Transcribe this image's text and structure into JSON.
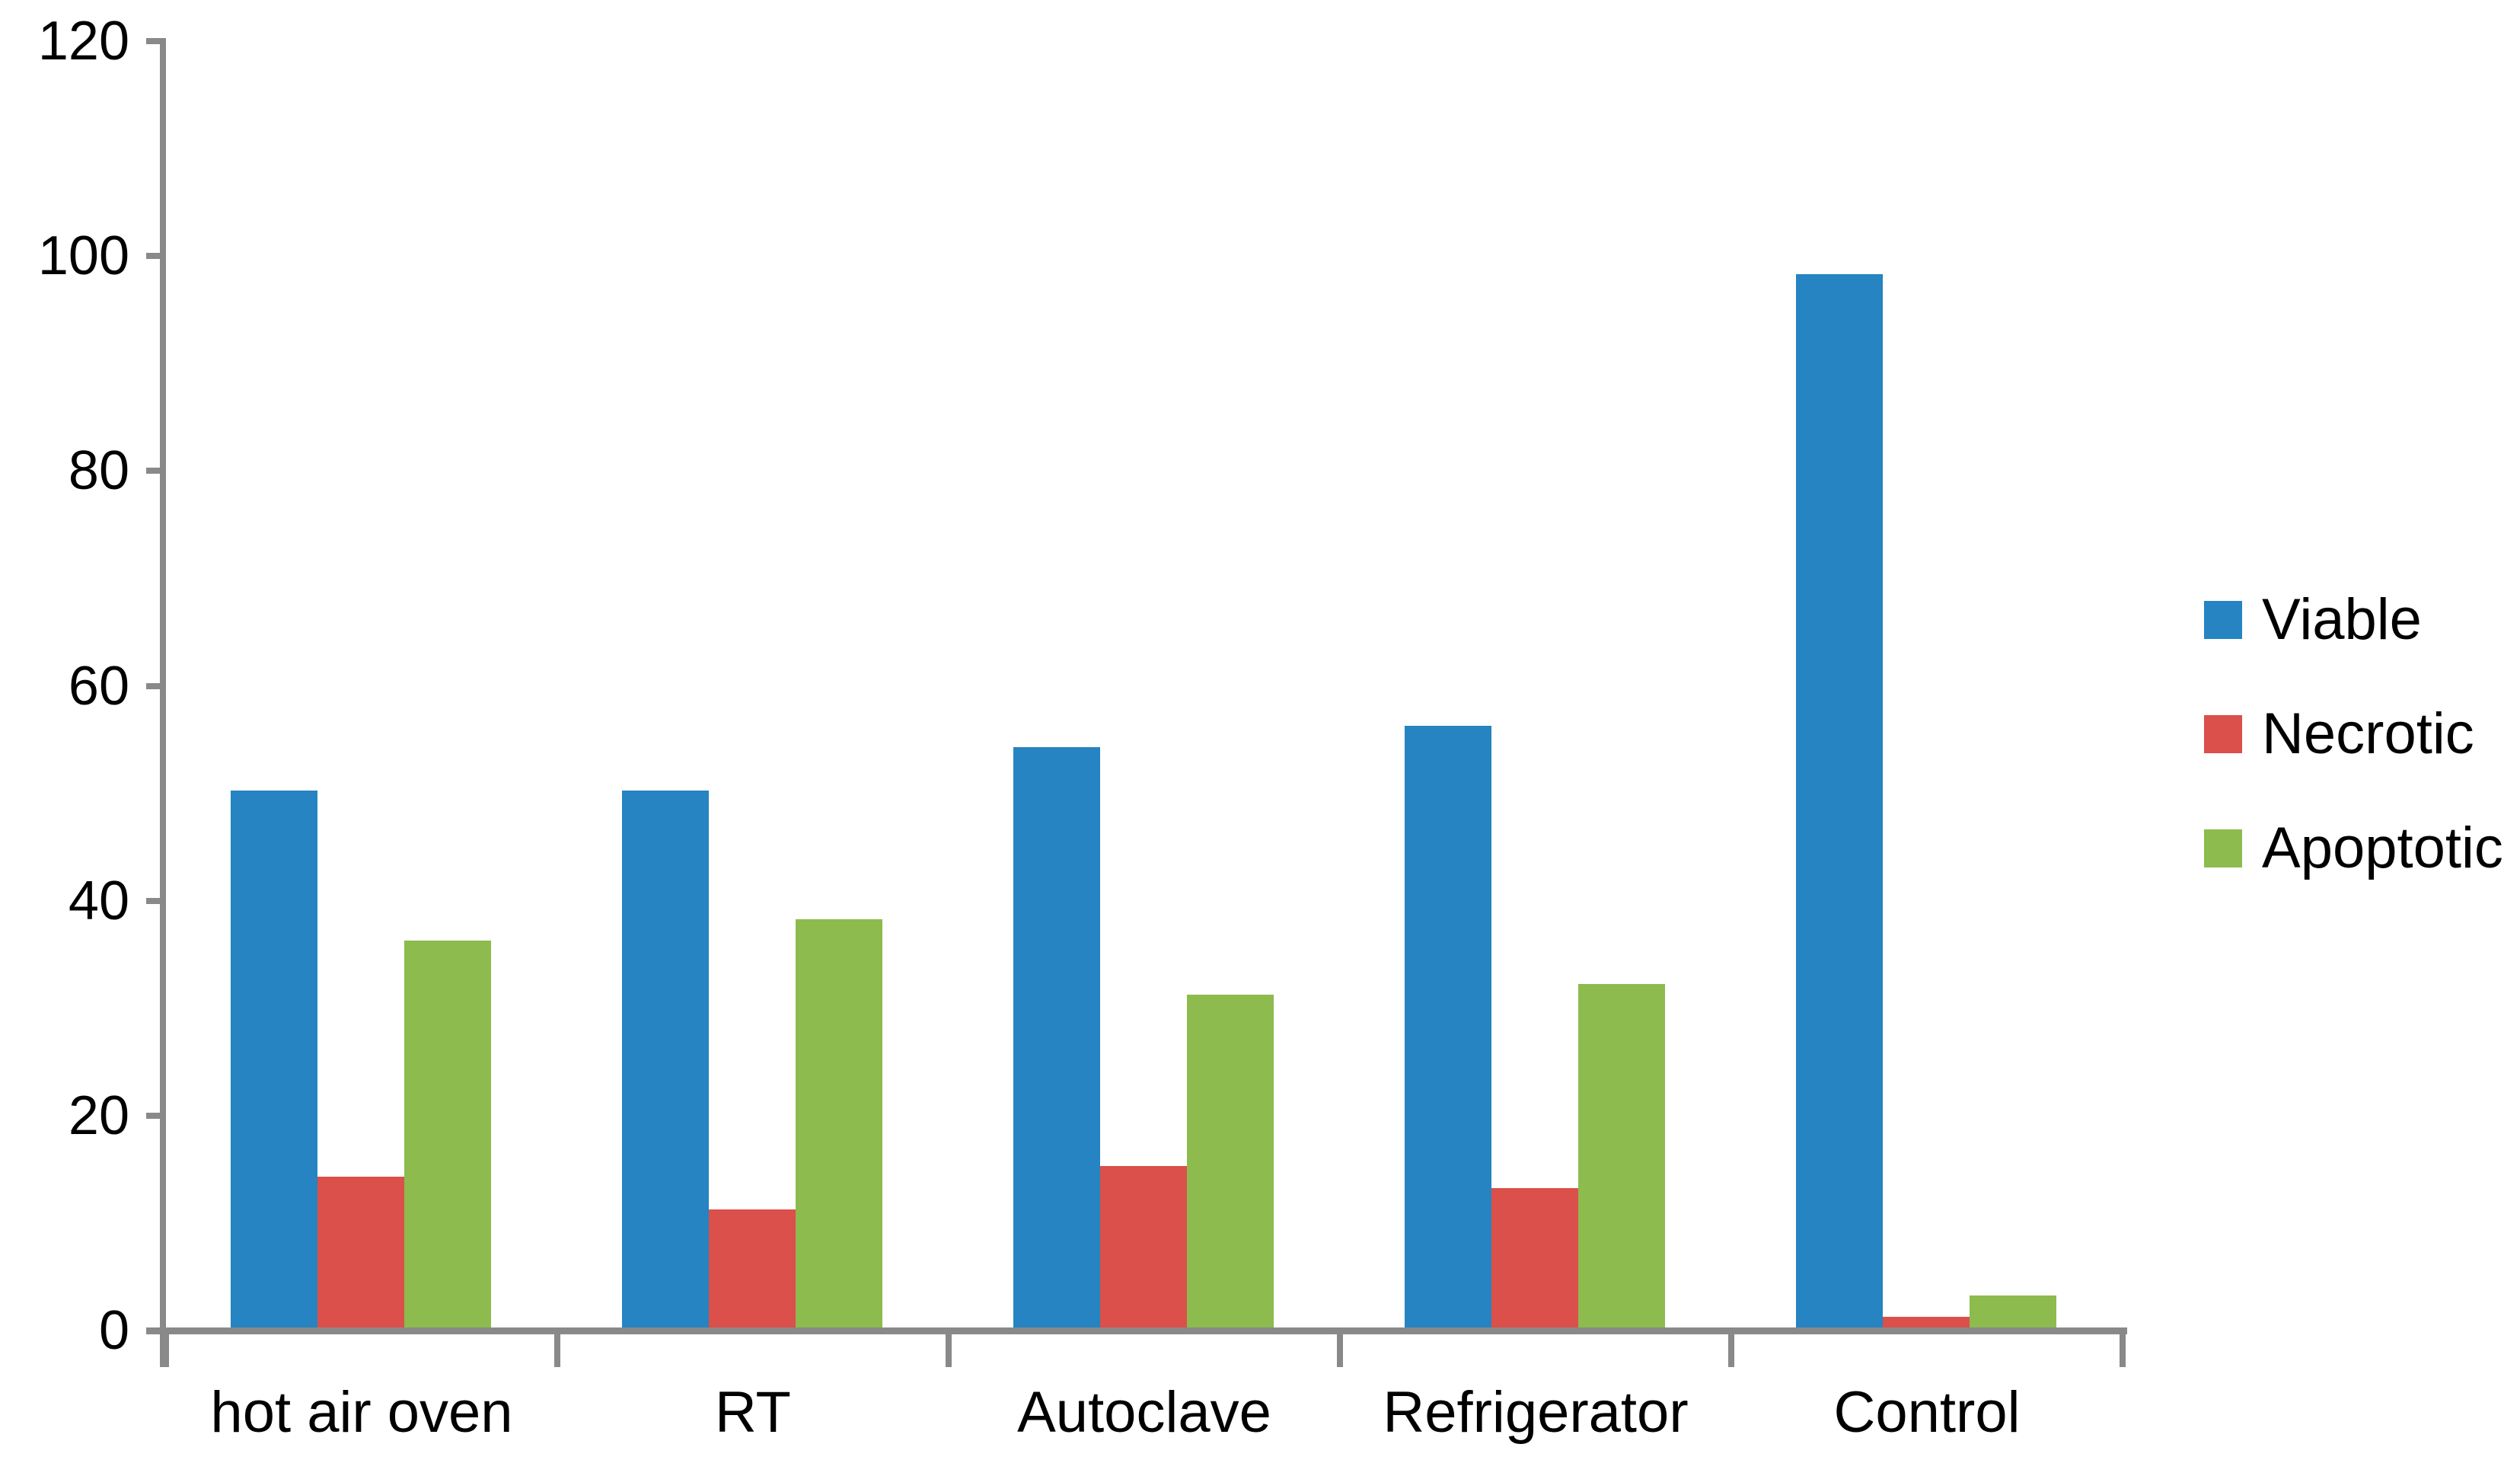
{
  "chart_data": {
    "type": "bar",
    "categories": [
      "hot air oven",
      "RT",
      "Autoclave",
      "Refrigerator",
      "Control"
    ],
    "series": [
      {
        "name": "Viable",
        "color": "#2584C1",
        "values": [
          50,
          50,
          54,
          56,
          98
        ]
      },
      {
        "name": "Necrotic",
        "color": "#DB504A",
        "values": [
          14,
          11,
          15,
          13,
          1
        ]
      },
      {
        "name": "Apoptotic",
        "color": "#8DBB4D",
        "values": [
          36,
          38,
          31,
          32,
          3
        ]
      }
    ],
    "title": "",
    "xlabel": "",
    "ylabel": "",
    "ylim": [
      0,
      120
    ],
    "yticks": [
      0,
      20,
      40,
      60,
      80,
      100,
      120
    ],
    "grid": false,
    "legend_position": "right",
    "axis_color": "#898989",
    "text_color": "#000000",
    "background_color": "#FFFFFF"
  }
}
